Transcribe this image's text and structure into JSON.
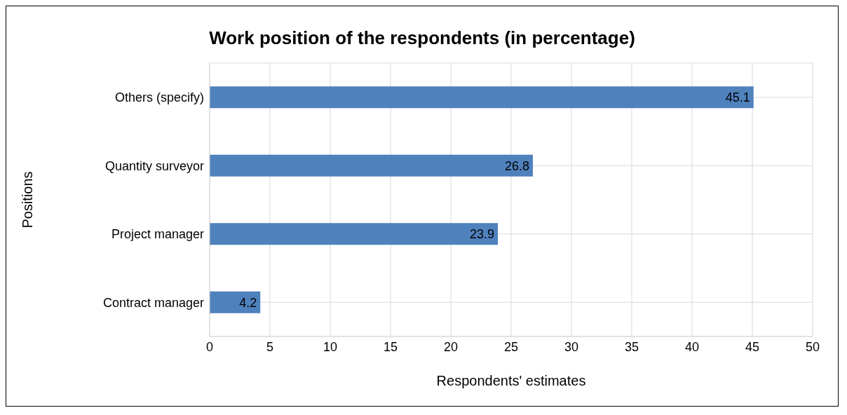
{
  "chart_data": {
    "type": "bar",
    "orientation": "horizontal",
    "title": "Work position of the respondents (in percentage)",
    "xlabel": "Respondents' estimates",
    "ylabel": "Positions",
    "categories": [
      "Others (specify)",
      "Quantity surveyor",
      "Project manager",
      "Contract manager"
    ],
    "values": [
      45.1,
      26.8,
      23.9,
      4.2
    ],
    "color": "#4f81bd",
    "xlim": [
      0,
      50
    ],
    "xticks": [
      0,
      5,
      10,
      15,
      20,
      25,
      30,
      35,
      40,
      45,
      50
    ],
    "grid": true,
    "data_labels": true
  }
}
